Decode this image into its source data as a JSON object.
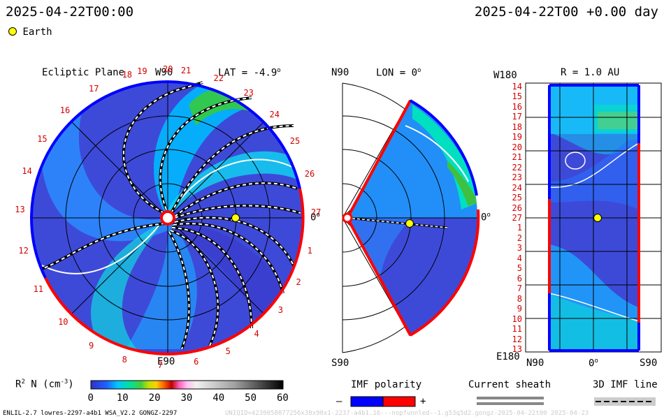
{
  "header": {
    "datetime_left": "2025-04-22T00:00",
    "datetime_right": "2025-04-22T00 +0.00 day",
    "legend_earth": "Earth"
  },
  "panels": {
    "ecliptic": {
      "title": "Ecliptic Plane",
      "top_label": "W90",
      "bottom_label": "E90",
      "right_label": "0",
      "lat_label": "LAT = -4.9",
      "lat_deg": "o",
      "carrington_ticks": [
        "19",
        "20",
        "21",
        "22",
        "23",
        "24",
        "25",
        "26",
        "27",
        "1",
        "2",
        "3",
        "4",
        "5",
        "6",
        "7",
        "8",
        "9",
        "10",
        "11",
        "12",
        "13",
        "14",
        "15",
        "16",
        "17",
        "18"
      ]
    },
    "meridional": {
      "top_label": "N90",
      "lon_label": "LON = 0",
      "lon_deg": "o",
      "bottom_label": "S90",
      "right_label": "0",
      "right_deg": "o"
    },
    "radial": {
      "top_left_label": "W180",
      "title": "R = 1.0 AU",
      "bottom_left_label": "E180",
      "x_labels": [
        "N90",
        "0",
        "S90"
      ],
      "x_deg": "o",
      "y_ticks": [
        "14",
        "15",
        "16",
        "17",
        "18",
        "19",
        "20",
        "21",
        "22",
        "23",
        "24",
        "25",
        "26",
        "27",
        "1",
        "2",
        "3",
        "4",
        "5",
        "6",
        "7",
        "8",
        "9",
        "10",
        "11",
        "12",
        "13"
      ]
    }
  },
  "colorbar": {
    "label_prefix": "R",
    "label_sup": "2",
    "label_mid": " N (cm",
    "label_sup2": "-3",
    "label_suffix": ")",
    "ticks": [
      "0",
      "10",
      "20",
      "30",
      "40",
      "50",
      "60"
    ]
  },
  "legends": {
    "imf_polarity": "IMF polarity",
    "minus": "–",
    "plus": "+",
    "current_sheath": "Current sheath",
    "imf_line": "3D IMF line"
  },
  "footer": {
    "model_info": "ENLIL-2.7 lowres-2297-a4b1 WSA_V2.2 GONGZ-2297",
    "watermark": "UNIQID=4230058077256x30x90x1-2237-a4b1.16---nopfunnled--1.g53q5d2.gongz-2025-04-22t00     2025-04-23"
  },
  "colors": {
    "polarity_negative": "#0000ff",
    "polarity_positive": "#ff0000",
    "earth": "#ffff00",
    "background_density": "#3a48d6"
  }
}
